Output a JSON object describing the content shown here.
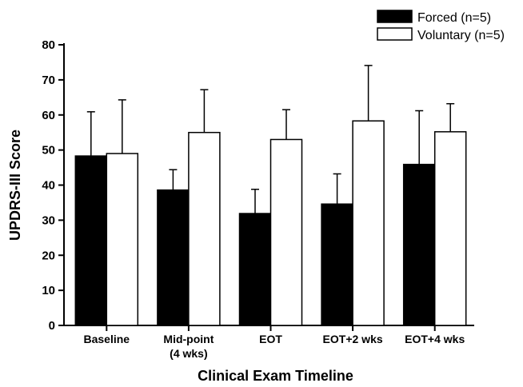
{
  "chart_data": {
    "type": "bar",
    "categories": [
      "Baseline",
      "Mid-point\n(4 wks)",
      "EOT",
      "EOT+2 wks",
      "EOT+4 wks"
    ],
    "series": [
      {
        "name": "Forced (n=5)",
        "values": [
          48.3,
          38.6,
          31.9,
          34.6,
          45.9
        ],
        "error_upper": [
          60.9,
          44.4,
          38.8,
          43.2,
          61.2
        ],
        "color": "#000000"
      },
      {
        "name": "Voluntary (n=5)",
        "values": [
          49.0,
          55.0,
          53.0,
          58.3,
          55.2
        ],
        "error_upper": [
          64.3,
          67.2,
          61.5,
          74.1,
          63.2
        ],
        "color": "#ffffff"
      }
    ],
    "xlabel": "Clinical Exam Timeline",
    "ylabel": "UPDRS-III Score",
    "ylim": [
      0,
      80
    ],
    "yticks": [
      0,
      10,
      20,
      30,
      40,
      50,
      60,
      70,
      80
    ],
    "legend": "top-right",
    "grid": false
  }
}
